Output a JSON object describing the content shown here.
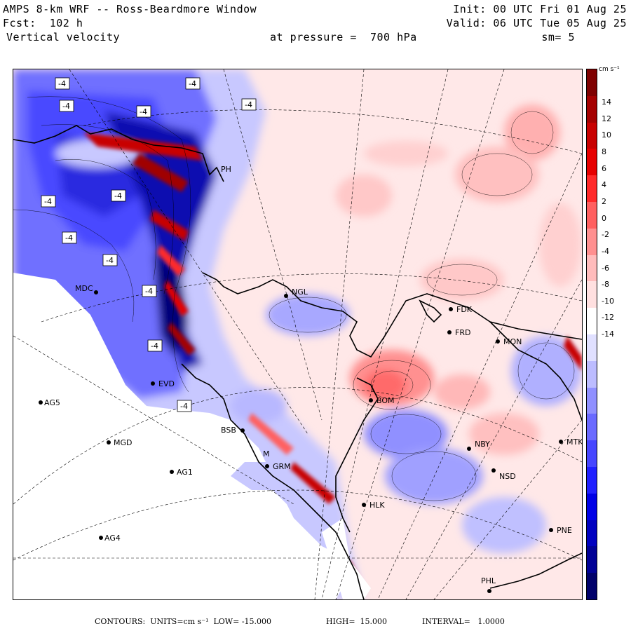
{
  "header": {
    "title": "AMPS 8-km WRF -- Ross-Beardmore Window",
    "init": "Init: 00 UTC Fri 01 Aug 25",
    "fcst": "Fcst:  102 h",
    "valid": "Valid: 06 UTC Tue 05 Aug 25",
    "field": "Vertical velocity",
    "pressure": "at pressure =  700 hPa",
    "smooth": "sm= 5"
  },
  "colorbar": {
    "unit": "cm s⁻¹",
    "ticks": [
      "14",
      "12",
      "10",
      "8",
      "6",
      "4",
      "2",
      "0",
      "-2",
      "-4",
      "-6",
      "-8",
      "-10",
      "-12",
      "-14"
    ],
    "colors": [
      "#7f0000",
      "#a50000",
      "#c80000",
      "#e60000",
      "#ff2a2a",
      "#ff6060",
      "#ff9090",
      "#ffbcbc",
      "#ffe0e0",
      "#ffffff",
      "#e0e0ff",
      "#bcbcff",
      "#9090ff",
      "#6a6aff",
      "#4646ff",
      "#2020ff",
      "#0000e6",
      "#0000c0",
      "#000096",
      "#00006a"
    ]
  },
  "contour_labels": [
    "-4",
    "-4",
    "-4",
    "-4",
    "-4",
    "-4",
    "-4",
    "-4",
    "-4",
    "-4",
    "-4",
    "-4"
  ],
  "stations": [
    {
      "id": "NGL"
    },
    {
      "id": "MDC"
    },
    {
      "id": "FDK"
    },
    {
      "id": "FRD"
    },
    {
      "id": "MON"
    },
    {
      "id": "BOM"
    },
    {
      "id": "NBY"
    },
    {
      "id": "MTK"
    },
    {
      "id": "NSD"
    },
    {
      "id": "PNE"
    },
    {
      "id": "PHL"
    },
    {
      "id": "HLK"
    },
    {
      "id": "GRM"
    },
    {
      "id": "AG5"
    },
    {
      "id": "MGD"
    },
    {
      "id": "AG1"
    },
    {
      "id": "AG4"
    },
    {
      "id": "EVD"
    },
    {
      "id": "PH"
    },
    {
      "id": "BSB"
    },
    {
      "id": "M"
    }
  ],
  "footer": {
    "contours": "CONTOURS:  UNITS=cm s⁻¹  LOW= -15.000",
    "high": "HIGH=  15.000",
    "interval": "INTERVAL=   1.0000"
  }
}
